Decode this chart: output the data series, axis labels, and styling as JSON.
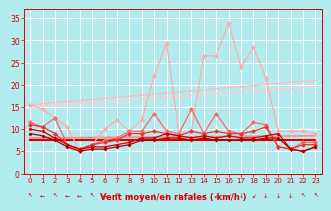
{
  "background_color": "#b2ebee",
  "grid_color": "#ffffff",
  "xlabel": "Vent moyen/en rafales ( km/h )",
  "x": [
    0,
    1,
    2,
    3,
    4,
    5,
    6,
    7,
    8,
    9,
    10,
    11,
    12,
    13,
    14,
    15,
    16,
    17,
    18,
    19,
    20,
    21,
    22,
    23
  ],
  "ylim": [
    0,
    37
  ],
  "xlim": [
    -0.5,
    23.5
  ],
  "yticks": [
    0,
    5,
    10,
    15,
    20,
    25,
    30,
    35
  ],
  "series_jagged": [
    {
      "y": [
        15.5,
        14.5,
        12.5,
        10.5,
        5.0,
        6.5,
        10.0,
        12.0,
        9.5,
        12.0,
        22.0,
        29.5,
        9.0,
        9.5,
        26.5,
        26.5,
        34.0,
        24.0,
        28.5,
        21.5,
        9.5,
        9.5,
        9.5,
        9.0
      ],
      "color": "#ffaaaa",
      "lw": 0.9,
      "marker": "D",
      "ms": 2.5
    },
    {
      "y": [
        11.5,
        10.5,
        12.5,
        6.5,
        5.0,
        6.5,
        7.5,
        8.0,
        9.5,
        9.5,
        13.5,
        9.5,
        9.0,
        14.5,
        9.0,
        13.5,
        9.5,
        9.0,
        11.5,
        11.0,
        6.0,
        5.5,
        7.0,
        7.0
      ],
      "color": "#ff6666",
      "lw": 0.9,
      "marker": "D",
      "ms": 2.5
    },
    {
      "y": [
        11.0,
        10.5,
        9.0,
        6.5,
        5.5,
        6.5,
        7.0,
        7.5,
        9.0,
        9.0,
        9.5,
        9.0,
        8.5,
        9.5,
        9.0,
        9.5,
        9.0,
        9.0,
        9.5,
        10.5,
        6.0,
        5.5,
        6.5,
        6.5
      ],
      "color": "#ee3333",
      "lw": 0.9,
      "marker": "D",
      "ms": 2.5
    },
    {
      "y": [
        10.0,
        9.5,
        8.0,
        6.5,
        5.5,
        6.0,
        6.0,
        6.5,
        7.0,
        8.0,
        8.0,
        9.0,
        8.5,
        8.0,
        8.5,
        8.0,
        8.5,
        8.0,
        8.0,
        8.5,
        9.0,
        5.5,
        5.0,
        6.0
      ],
      "color": "#cc0000",
      "lw": 0.9,
      "marker": "D",
      "ms": 2.0
    },
    {
      "y": [
        9.0,
        8.5,
        7.5,
        6.0,
        5.0,
        5.5,
        5.5,
        6.0,
        6.5,
        7.5,
        7.5,
        8.0,
        8.0,
        7.5,
        8.0,
        7.5,
        7.5,
        7.5,
        7.5,
        8.0,
        8.0,
        5.5,
        5.0,
        6.0
      ],
      "color": "#aa0000",
      "lw": 0.9,
      "marker": "D",
      "ms": 2.0
    }
  ],
  "series_straight": [
    {
      "y_start": 15.5,
      "y_end": 21.0,
      "color": "#ffbbbb",
      "lw": 1.0
    },
    {
      "y_start": 15.0,
      "y_end": 19.5,
      "color": "#ffcccc",
      "lw": 1.0
    },
    {
      "y_start": 8.0,
      "y_end": 8.5,
      "color": "#ff8888",
      "lw": 1.2
    },
    {
      "y_start": 7.5,
      "y_end": 7.5,
      "color": "#dd0000",
      "lw": 1.5
    }
  ],
  "tick_color": "#dd0000",
  "xlabel_color": "#dd0000"
}
